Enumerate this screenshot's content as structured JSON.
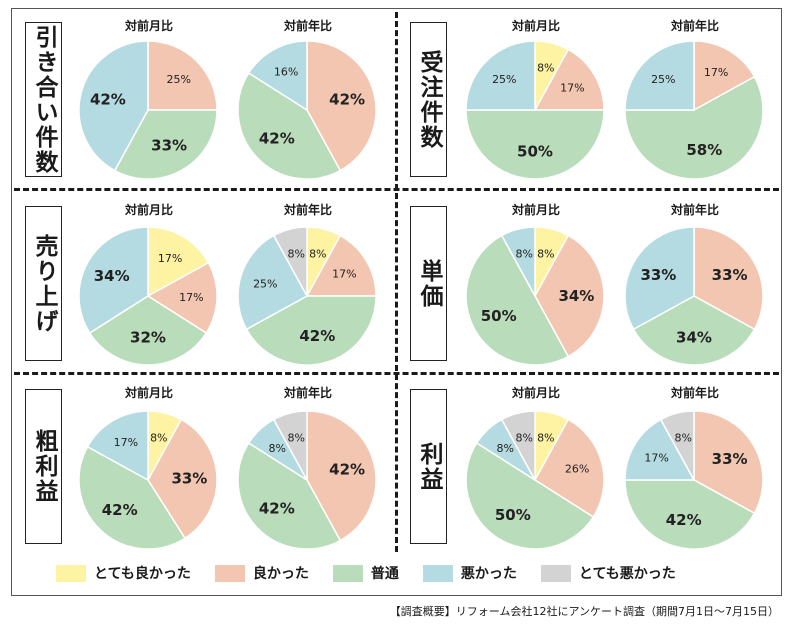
{
  "legend": [
    {
      "label": "とても良かった",
      "color": "#fdf3a2"
    },
    {
      "label": "良かった",
      "color": "#f2c6b0"
    },
    {
      "label": "普通",
      "color": "#b9dcbb"
    },
    {
      "label": "悪かった",
      "color": "#b4dbe1"
    },
    {
      "label": "とても悪かった",
      "color": "#d3d3d3"
    }
  ],
  "footnote": "【調査概要】リフォーム会社12社にアンケート調査（期間7月1日〜7月15日）",
  "chart_data": [
    {
      "type": "pie",
      "section": "引き合い件数",
      "charts": [
        {
          "title": "対前月比",
          "values": [
            0,
            25,
            33,
            42,
            0
          ]
        },
        {
          "title": "対前年比",
          "values": [
            0,
            42,
            42,
            16,
            0
          ]
        }
      ]
    },
    {
      "type": "pie",
      "section": "受注件数",
      "charts": [
        {
          "title": "対前月比",
          "values": [
            8,
            17,
            50,
            25,
            0
          ]
        },
        {
          "title": "対前年比",
          "values": [
            0,
            17,
            58,
            25,
            0
          ]
        }
      ]
    },
    {
      "type": "pie",
      "section": "売り上げ",
      "charts": [
        {
          "title": "対前月比",
          "values": [
            17,
            17,
            32,
            34,
            0
          ]
        },
        {
          "title": "対前年比",
          "values": [
            8,
            17,
            42,
            25,
            8
          ]
        }
      ]
    },
    {
      "type": "pie",
      "section": "単価",
      "charts": [
        {
          "title": "対前月比",
          "values": [
            8,
            34,
            50,
            8,
            0
          ]
        },
        {
          "title": "対前年比",
          "values": [
            0,
            33,
            34,
            33,
            0
          ]
        }
      ]
    },
    {
      "type": "pie",
      "section": "粗利益",
      "charts": [
        {
          "title": "対前月比",
          "values": [
            8,
            33,
            42,
            17,
            0
          ]
        },
        {
          "title": "対前年比",
          "values": [
            0,
            42,
            42,
            8,
            8
          ]
        }
      ]
    },
    {
      "type": "pie",
      "section": "利益",
      "charts": [
        {
          "title": "対前月比",
          "values": [
            8,
            26,
            50,
            8,
            8
          ]
        },
        {
          "title": "対前年比",
          "values": [
            0,
            33,
            42,
            17,
            8
          ]
        }
      ]
    }
  ]
}
